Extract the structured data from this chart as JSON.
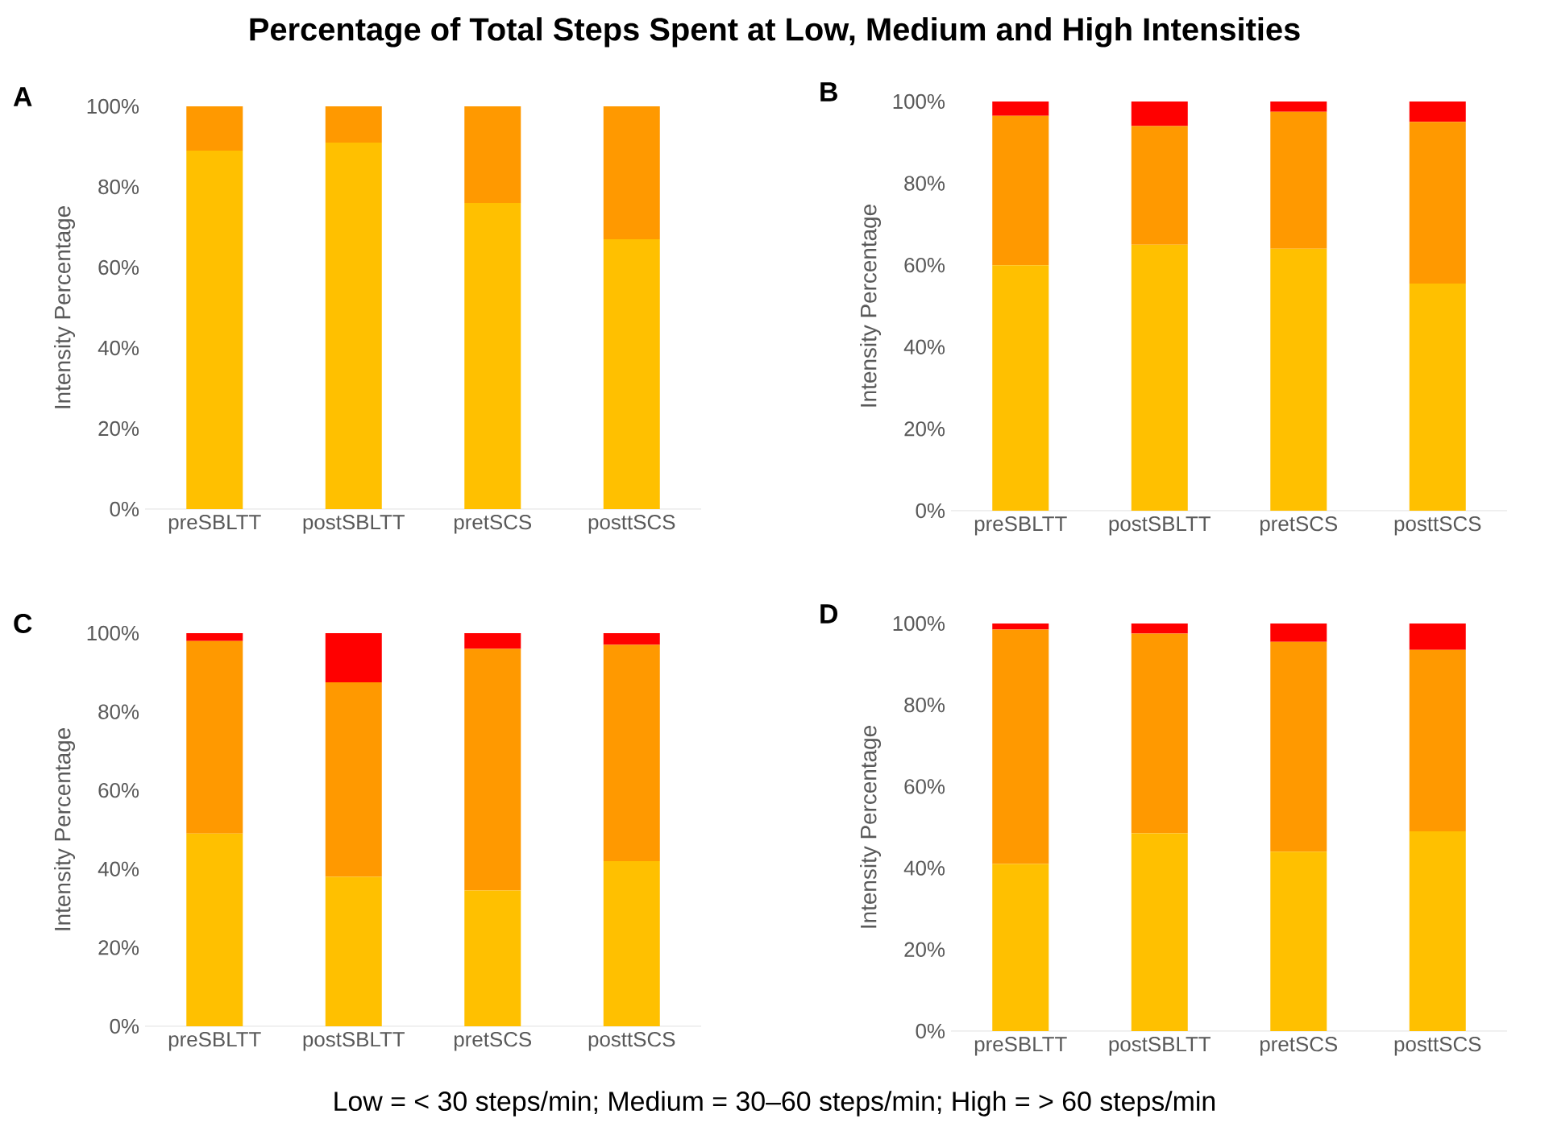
{
  "chart_data": [
    {
      "type": "bar",
      "stacked": true,
      "title": "A",
      "ylabel": "Intensity Percentage",
      "annotations": [
        "Percentage of Total Steps Spent at Low, Medium and High Intensities"
      ],
      "categories": [
        "preSBLTT",
        "postSBLTT",
        "pretSCS",
        "posttSCS"
      ],
      "ylim": [
        0,
        100
      ],
      "yticks": [
        {
          "value": 0,
          "label": "0%"
        },
        {
          "value": 20,
          "label": "20%"
        },
        {
          "value": 40,
          "label": "40%"
        },
        {
          "value": 60,
          "label": "60%"
        },
        {
          "value": 80,
          "label": "80%"
        },
        {
          "value": 100,
          "label": "100%"
        }
      ],
      "series": [
        {
          "color": "#ffc000",
          "values": [
            89,
            91,
            76,
            67
          ]
        },
        {
          "color": "#ff9900",
          "values": [
            11,
            9,
            24,
            33
          ]
        }
      ]
    },
    {
      "type": "bar",
      "stacked": true,
      "title": "B",
      "ylabel": "Intensity Percentage",
      "categories": [
        "preSBLTT",
        "postSBLTT",
        "pretSCS",
        "posttSCS"
      ],
      "ylim": [
        0,
        100
      ],
      "yticks": [
        {
          "value": 0,
          "label": "0%"
        },
        {
          "value": 20,
          "label": "20%"
        },
        {
          "value": 40,
          "label": "40%"
        },
        {
          "value": 60,
          "label": "60%"
        },
        {
          "value": 80,
          "label": "80%"
        },
        {
          "value": 100,
          "label": "100%"
        }
      ],
      "series": [
        {
          "color": "#ffc000",
          "values": [
            60,
            65,
            64,
            55.5
          ]
        },
        {
          "color": "#ff9900",
          "values": [
            36.5,
            29,
            33.5,
            39.5
          ]
        },
        {
          "color": "#ff0000",
          "values": [
            3.5,
            6,
            2.5,
            5
          ]
        }
      ]
    },
    {
      "type": "bar",
      "stacked": true,
      "title": "C",
      "ylabel": "Intensity Percentage",
      "categories": [
        "preSBLTT",
        "postSBLTT",
        "pretSCS",
        "posttSCS"
      ],
      "ylim": [
        0,
        100
      ],
      "yticks": [
        {
          "value": 0,
          "label": "0%"
        },
        {
          "value": 20,
          "label": "20%"
        },
        {
          "value": 40,
          "label": "40%"
        },
        {
          "value": 60,
          "label": "60%"
        },
        {
          "value": 80,
          "label": "80%"
        },
        {
          "value": 100,
          "label": "100%"
        }
      ],
      "series": [
        {
          "color": "#ffc000",
          "values": [
            49,
            38,
            34.5,
            42
          ]
        },
        {
          "color": "#ff9900",
          "values": [
            49,
            49.5,
            61.5,
            55
          ]
        },
        {
          "color": "#ff0000",
          "values": [
            2,
            12.5,
            4,
            3
          ]
        }
      ]
    },
    {
      "type": "bar",
      "stacked": true,
      "title": "D",
      "ylabel": "Intensity Percentage",
      "annotations": [
        "Low = < 30 steps/min; Medium = 30–60 steps/min; High = > 60 steps/min"
      ],
      "categories": [
        "preSBLTT",
        "postSBLTT",
        "pretSCS",
        "posttSCS"
      ],
      "ylim": [
        0,
        100
      ],
      "yticks": [
        {
          "value": 0,
          "label": "0%"
        },
        {
          "value": 20,
          "label": "20%"
        },
        {
          "value": 40,
          "label": "40%"
        },
        {
          "value": 60,
          "label": "60%"
        },
        {
          "value": 80,
          "label": "80%"
        },
        {
          "value": 100,
          "label": "100%"
        }
      ],
      "series": [
        {
          "color": "#ffc000",
          "values": [
            41,
            48.5,
            44,
            49
          ]
        },
        {
          "color": "#ff9900",
          "values": [
            57.5,
            49,
            51.5,
            44.5
          ]
        },
        {
          "color": "#ff0000",
          "values": [
            1.5,
            2.5,
            4.5,
            6.5
          ]
        }
      ]
    }
  ]
}
